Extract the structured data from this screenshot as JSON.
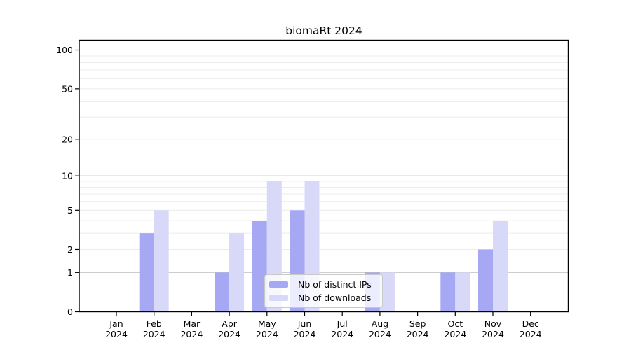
{
  "chart_data": {
    "type": "bar",
    "title": "biomaRt 2024",
    "x": {
      "months": [
        "Jan",
        "Feb",
        "Mar",
        "Apr",
        "May",
        "Jun",
        "Jul",
        "Aug",
        "Sep",
        "Oct",
        "Nov",
        "Dec"
      ],
      "year": "2024"
    },
    "series": [
      {
        "name": "Nb of distinct IPs",
        "color": "#a6a8f4",
        "values": [
          0,
          3,
          0,
          1,
          4,
          5,
          0,
          1,
          0,
          1,
          2,
          0
        ]
      },
      {
        "name": "Nb of downloads",
        "color": "#d8d9f8",
        "values": [
          0,
          5,
          0,
          3,
          9,
          9,
          0,
          1,
          0,
          1,
          4,
          0
        ]
      }
    ],
    "y_axis": {
      "scale": "log10(1+y)",
      "tick_labels": [
        0,
        1,
        2,
        5,
        10,
        20,
        50,
        100
      ],
      "range": [
        0,
        119
      ]
    },
    "grid": {
      "minor_lines": [
        2,
        3,
        4,
        5,
        6,
        7,
        8,
        9,
        20,
        30,
        40,
        50,
        60,
        70,
        80,
        90
      ],
      "major_lines": [
        1,
        10,
        100
      ],
      "minor_color": "#ececec",
      "major_color": "#c6c6c6"
    },
    "legend_position": "lower center",
    "axis_color": "#000000",
    "background_color": "#ffffff"
  }
}
